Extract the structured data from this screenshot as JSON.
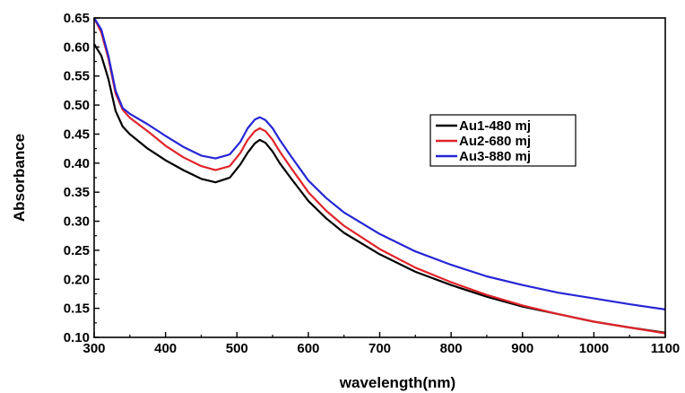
{
  "chart_data": {
    "type": "line",
    "title": "",
    "xlabel": "wavelength(nm)",
    "ylabel": "Absorbance",
    "xlim": [
      300,
      1100
    ],
    "ylim": [
      0.1,
      0.65
    ],
    "xticks": [
      "300",
      "400",
      "500",
      "600",
      "700",
      "800",
      "900",
      "1000",
      "1100"
    ],
    "yticks": [
      "0.10",
      "0.15",
      "0.20",
      "0.25",
      "0.30",
      "0.35",
      "0.40",
      "0.45",
      "0.50",
      "0.55",
      "0.60",
      "0.65"
    ],
    "grid": false,
    "legend_position": "right",
    "x": [
      300,
      310,
      320,
      330,
      340,
      350,
      375,
      400,
      425,
      450,
      470,
      490,
      505,
      515,
      525,
      532,
      540,
      550,
      560,
      575,
      600,
      625,
      650,
      700,
      750,
      800,
      850,
      900,
      950,
      1000,
      1050,
      1100
    ],
    "series": [
      {
        "name": "Au1-480 mj",
        "color": "#000000",
        "values": [
          0.605,
          0.585,
          0.545,
          0.49,
          0.463,
          0.45,
          0.425,
          0.405,
          0.388,
          0.373,
          0.367,
          0.375,
          0.398,
          0.418,
          0.434,
          0.44,
          0.435,
          0.42,
          0.4,
          0.375,
          0.335,
          0.305,
          0.28,
          0.243,
          0.213,
          0.19,
          0.17,
          0.153,
          0.14,
          0.127,
          0.117,
          0.108
        ]
      },
      {
        "name": "Au2-680 mj",
        "color": "#e0242a",
        "values": [
          0.65,
          0.625,
          0.58,
          0.52,
          0.492,
          0.478,
          0.455,
          0.43,
          0.41,
          0.395,
          0.388,
          0.395,
          0.418,
          0.44,
          0.455,
          0.46,
          0.455,
          0.44,
          0.42,
          0.393,
          0.35,
          0.318,
          0.292,
          0.252,
          0.22,
          0.195,
          0.173,
          0.155,
          0.14,
          0.127,
          0.117,
          0.107
        ]
      },
      {
        "name": "Au3-880 mj",
        "color": "#2626d6",
        "values": [
          0.65,
          0.63,
          0.585,
          0.525,
          0.495,
          0.485,
          0.467,
          0.447,
          0.428,
          0.413,
          0.408,
          0.415,
          0.437,
          0.46,
          0.475,
          0.479,
          0.474,
          0.46,
          0.44,
          0.413,
          0.37,
          0.34,
          0.315,
          0.278,
          0.248,
          0.225,
          0.205,
          0.19,
          0.177,
          0.167,
          0.157,
          0.148
        ]
      }
    ]
  }
}
